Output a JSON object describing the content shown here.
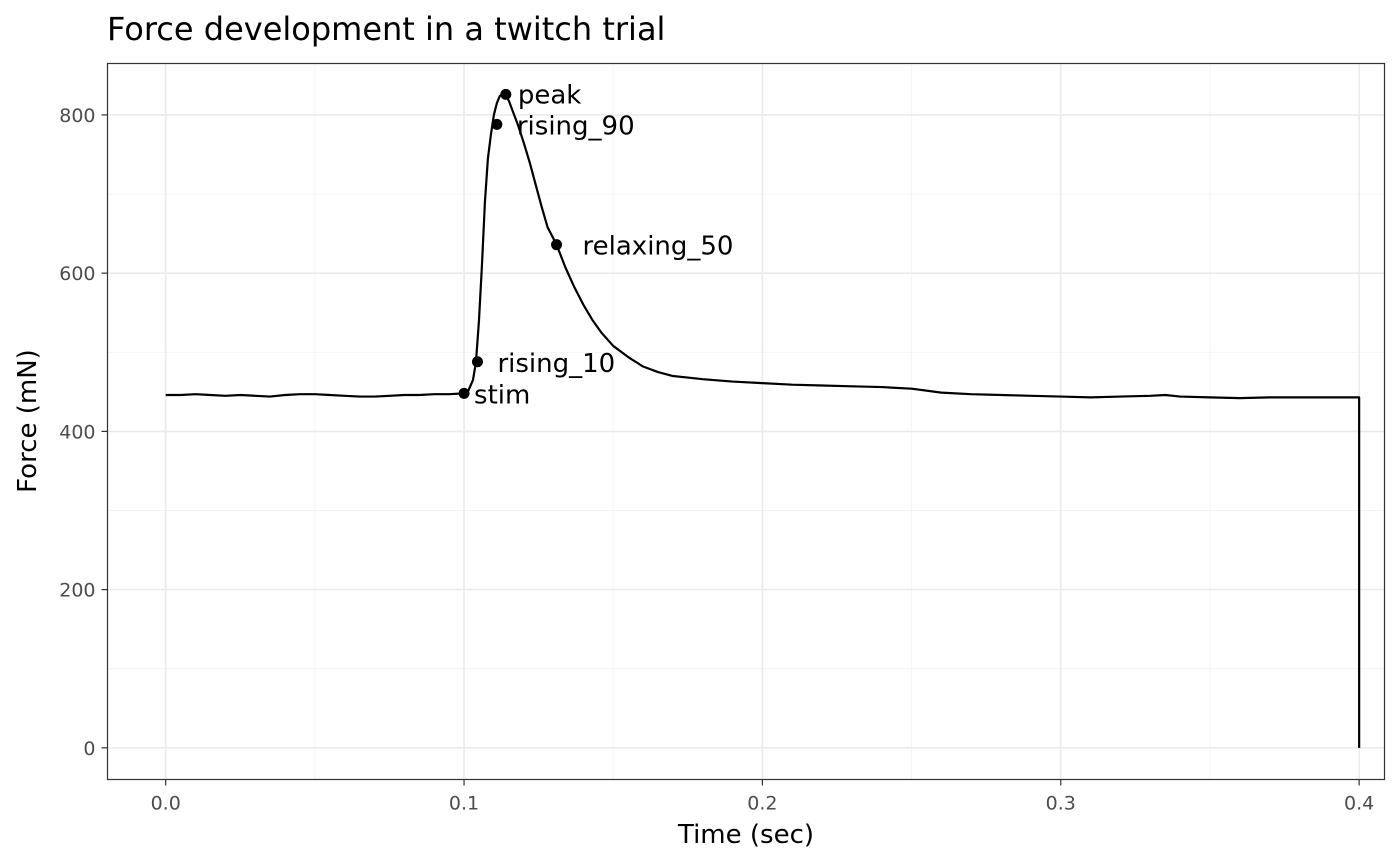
{
  "chart_data": {
    "type": "line",
    "title": "Force development in a twitch trial",
    "xlabel": "Time (sec)",
    "ylabel": "Force (mN)",
    "xlim": [
      -0.0195,
      0.4085
    ],
    "ylim": [
      -40,
      865
    ],
    "x_ticks": [
      0.0,
      0.1,
      0.2,
      0.3,
      0.4
    ],
    "x_tick_labels": [
      "0.0",
      "0.1",
      "0.2",
      "0.3",
      "0.4"
    ],
    "y_ticks": [
      0,
      200,
      400,
      600,
      800
    ],
    "y_tick_labels": [
      "0",
      "200",
      "400",
      "600",
      "800"
    ],
    "grid": true,
    "legend": "none",
    "series": [
      {
        "x": [
          0.0,
          0.005,
          0.01,
          0.015,
          0.02,
          0.025,
          0.03,
          0.035,
          0.04,
          0.045,
          0.05,
          0.055,
          0.06,
          0.065,
          0.07,
          0.075,
          0.08,
          0.085,
          0.09,
          0.095,
          0.1,
          0.1015,
          0.103,
          0.104,
          0.105,
          0.106,
          0.107,
          0.108,
          0.109,
          0.11,
          0.111,
          0.112,
          0.113,
          0.114,
          0.115,
          0.116,
          0.118,
          0.12,
          0.122,
          0.124,
          0.126,
          0.128,
          0.131,
          0.134,
          0.137,
          0.14,
          0.143,
          0.146,
          0.15,
          0.155,
          0.16,
          0.165,
          0.17,
          0.175,
          0.18,
          0.19,
          0.2,
          0.21,
          0.22,
          0.23,
          0.24,
          0.25,
          0.26,
          0.27,
          0.28,
          0.29,
          0.3,
          0.31,
          0.32,
          0.33,
          0.335,
          0.34,
          0.35,
          0.36,
          0.37,
          0.38,
          0.39,
          0.3999,
          0.4,
          0.4
        ],
        "y": [
          446,
          446,
          447,
          446,
          445,
          446,
          445,
          444,
          446,
          447,
          447,
          446,
          445,
          444,
          444,
          445,
          446,
          446,
          447,
          447,
          448,
          452,
          465,
          488,
          540,
          610,
          690,
          745,
          775,
          800,
          815,
          824,
          826,
          824,
          818,
          808,
          788,
          765,
          740,
          712,
          684,
          658,
          636,
          607,
          582,
          560,
          541,
          525,
          508,
          494,
          482,
          475,
          470,
          468,
          466,
          463,
          461,
          459,
          458,
          457,
          456,
          454,
          449,
          447,
          446,
          445,
          444,
          443,
          444,
          445,
          446,
          444,
          443,
          442,
          443,
          443,
          443,
          443,
          443,
          0
        ]
      }
    ],
    "annotations": [
      {
        "label": "stim",
        "x": 0.1,
        "y": 448
      },
      {
        "label": "rising_10",
        "x": 0.1045,
        "y": 488
      },
      {
        "label": "rising_90",
        "x": 0.111,
        "y": 788
      },
      {
        "label": "peak",
        "x": 0.114,
        "y": 826
      },
      {
        "label": "relaxing_50",
        "x": 0.131,
        "y": 636
      }
    ]
  }
}
